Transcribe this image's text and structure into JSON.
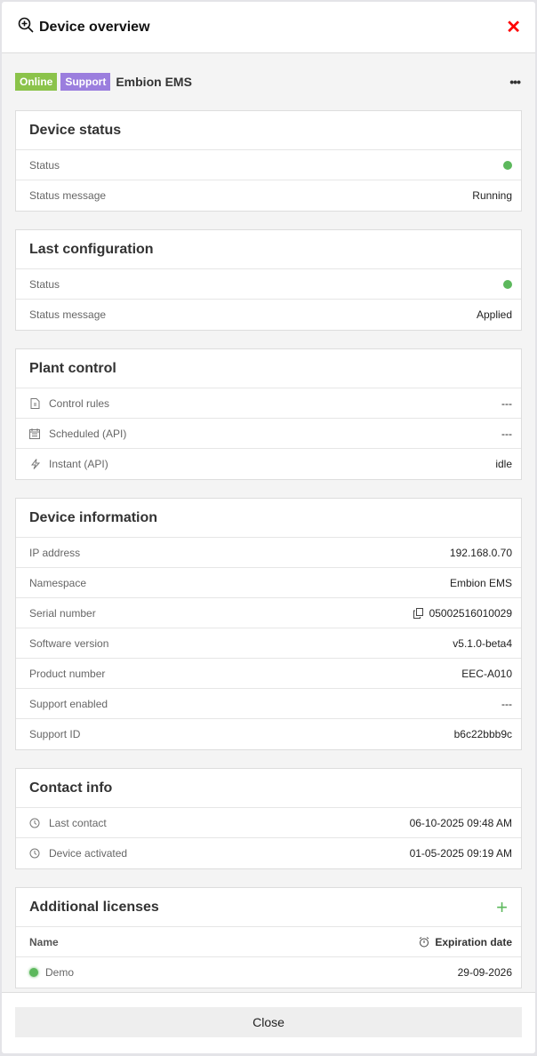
{
  "header": {
    "title": "Device overview",
    "icon": "zoom-in-icon",
    "close_icon": "close-icon"
  },
  "device": {
    "badges": [
      {
        "label": "Online",
        "color": "#8bc34a"
      },
      {
        "label": "Support",
        "color": "#9b7ede"
      }
    ],
    "name": "Embion EMS",
    "more_label": "•••"
  },
  "cards": [
    {
      "title": "Device status",
      "rows": [
        {
          "label": "Status",
          "status_dot": "#5cb85c"
        },
        {
          "label": "Status message",
          "value": "Running"
        }
      ]
    },
    {
      "title": "Last configuration",
      "rows": [
        {
          "label": "Status",
          "status_dot": "#5cb85c"
        },
        {
          "label": "Status message",
          "value": "Applied"
        }
      ]
    },
    {
      "title": "Plant control",
      "rows": [
        {
          "label": "Control rules",
          "icon": "document-rules-icon",
          "value": "---"
        },
        {
          "label": "Scheduled (API)",
          "icon": "calendar-icon",
          "value": "---"
        },
        {
          "label": "Instant (API)",
          "icon": "lightning-icon",
          "value": "idle"
        }
      ]
    },
    {
      "title": "Device information",
      "rows": [
        {
          "label": "IP address",
          "value": "192.168.0.70"
        },
        {
          "label": "Namespace",
          "value": "Embion EMS"
        },
        {
          "label": "Serial number",
          "value": "05002516010029",
          "value_icon": "copy-icon"
        },
        {
          "label": "Software version",
          "value": "v5.1.0-beta4"
        },
        {
          "label": "Product number",
          "value": "EEC-A010"
        },
        {
          "label": "Support enabled",
          "value": "---"
        },
        {
          "label": "Support ID",
          "value": "b6c22bbb9c"
        }
      ]
    },
    {
      "title": "Contact info",
      "rows": [
        {
          "label": "Last contact",
          "icon": "clock-icon",
          "value": "06-10-2025 09:48 AM"
        },
        {
          "label": "Device activated",
          "icon": "clock-icon",
          "value": "01-05-2025 09:19 AM"
        }
      ]
    },
    {
      "title": "Additional licenses",
      "add_label": "+",
      "rows": [
        {
          "label": "Name",
          "value": "Expiration date",
          "value_icon": "alarm-clock-icon",
          "header": true
        },
        {
          "label": "Demo",
          "label_dot": "#5cb85c",
          "value": "29-09-2026"
        }
      ]
    }
  ],
  "footer": {
    "close_label": "Close"
  }
}
